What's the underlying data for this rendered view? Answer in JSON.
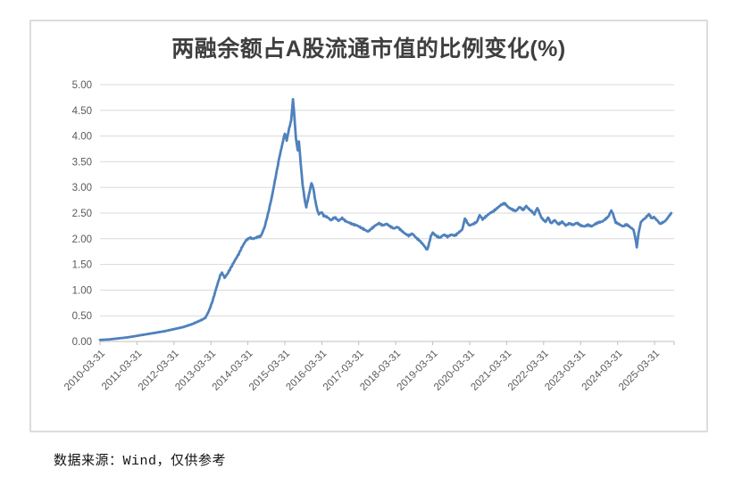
{
  "footer": {
    "source_text": "数据来源：Wind，仅供参考"
  },
  "style_colors": {
    "line": "#4F81BD",
    "gridline": "#D9D9D9",
    "axis": "#BFBFBF",
    "tick_label": "#595959",
    "title": "#3F3F3F",
    "chart_border": "#DCDCDC"
  },
  "chart_data": {
    "type": "line",
    "title": "两融余额占A股流通市值的比例变化(%)",
    "xlabel": "",
    "ylabel": "",
    "ylim": [
      0,
      5
    ],
    "ytick_step": 0.5,
    "grid": "horizontal-only",
    "legend": "none",
    "y_tick_labels": [
      "0.00",
      "0.50",
      "1.00",
      "1.50",
      "2.00",
      "2.50",
      "3.00",
      "3.50",
      "4.00",
      "4.50",
      "5.00"
    ],
    "x_tick_labels": [
      "2010-03-31",
      "2011-03-31",
      "2012-03-31",
      "2013-03-31",
      "2014-03-31",
      "2015-03-31",
      "2016-03-31",
      "2017-03-31",
      "2018-03-31",
      "2019-03-31",
      "2020-03-31",
      "2021-03-31",
      "2022-03-31",
      "2023-03-31",
      "2024-03-31",
      "2025-03-31"
    ],
    "x_axis_start_year": 2010.25,
    "x_axis_end_year": 2025.77,
    "series": [
      {
        "name": "两融余额占A股流通市值的比例(%)",
        "points": [
          [
            2010.25,
            0.03
          ],
          [
            2010.5,
            0.04
          ],
          [
            2010.75,
            0.06
          ],
          [
            2011.0,
            0.08
          ],
          [
            2011.25,
            0.11
          ],
          [
            2011.5,
            0.14
          ],
          [
            2011.75,
            0.17
          ],
          [
            2012.0,
            0.2
          ],
          [
            2012.25,
            0.24
          ],
          [
            2012.5,
            0.28
          ],
          [
            2012.75,
            0.34
          ],
          [
            2013.0,
            0.42
          ],
          [
            2013.1,
            0.46
          ],
          [
            2013.2,
            0.6
          ],
          [
            2013.3,
            0.8
          ],
          [
            2013.4,
            1.05
          ],
          [
            2013.5,
            1.28
          ],
          [
            2013.55,
            1.33
          ],
          [
            2013.62,
            1.24
          ],
          [
            2013.7,
            1.32
          ],
          [
            2013.8,
            1.45
          ],
          [
            2013.9,
            1.58
          ],
          [
            2014.0,
            1.7
          ],
          [
            2014.1,
            1.85
          ],
          [
            2014.2,
            1.97
          ],
          [
            2014.3,
            2.02
          ],
          [
            2014.4,
            2.0
          ],
          [
            2014.5,
            2.03
          ],
          [
            2014.6,
            2.05
          ],
          [
            2014.7,
            2.22
          ],
          [
            2014.8,
            2.5
          ],
          [
            2014.9,
            2.82
          ],
          [
            2015.0,
            3.2
          ],
          [
            2015.1,
            3.58
          ],
          [
            2015.2,
            3.9
          ],
          [
            2015.25,
            4.05
          ],
          [
            2015.3,
            3.92
          ],
          [
            2015.35,
            4.1
          ],
          [
            2015.42,
            4.3
          ],
          [
            2015.47,
            4.72
          ],
          [
            2015.5,
            4.45
          ],
          [
            2015.55,
            3.95
          ],
          [
            2015.6,
            3.72
          ],
          [
            2015.63,
            3.9
          ],
          [
            2015.68,
            3.45
          ],
          [
            2015.73,
            3.05
          ],
          [
            2015.8,
            2.7
          ],
          [
            2015.83,
            2.62
          ],
          [
            2015.9,
            2.85
          ],
          [
            2015.97,
            3.08
          ],
          [
            2016.02,
            2.98
          ],
          [
            2016.08,
            2.72
          ],
          [
            2016.13,
            2.55
          ],
          [
            2016.17,
            2.48
          ],
          [
            2016.25,
            2.52
          ],
          [
            2016.3,
            2.45
          ],
          [
            2016.4,
            2.42
          ],
          [
            2016.5,
            2.36
          ],
          [
            2016.6,
            2.42
          ],
          [
            2016.7,
            2.35
          ],
          [
            2016.8,
            2.4
          ],
          [
            2016.9,
            2.34
          ],
          [
            2017.0,
            2.31
          ],
          [
            2017.1,
            2.28
          ],
          [
            2017.2,
            2.26
          ],
          [
            2017.3,
            2.22
          ],
          [
            2017.4,
            2.18
          ],
          [
            2017.5,
            2.14
          ],
          [
            2017.6,
            2.2
          ],
          [
            2017.7,
            2.26
          ],
          [
            2017.8,
            2.3
          ],
          [
            2017.9,
            2.26
          ],
          [
            2018.0,
            2.29
          ],
          [
            2018.1,
            2.24
          ],
          [
            2018.2,
            2.2
          ],
          [
            2018.3,
            2.23
          ],
          [
            2018.4,
            2.16
          ],
          [
            2018.5,
            2.1
          ],
          [
            2018.6,
            2.06
          ],
          [
            2018.7,
            2.1
          ],
          [
            2018.8,
            2.02
          ],
          [
            2018.9,
            1.96
          ],
          [
            2019.0,
            1.88
          ],
          [
            2019.1,
            1.78
          ],
          [
            2019.15,
            1.9
          ],
          [
            2019.2,
            2.05
          ],
          [
            2019.25,
            2.12
          ],
          [
            2019.35,
            2.05
          ],
          [
            2019.45,
            2.02
          ],
          [
            2019.55,
            2.08
          ],
          [
            2019.65,
            2.04
          ],
          [
            2019.75,
            2.08
          ],
          [
            2019.85,
            2.06
          ],
          [
            2019.95,
            2.12
          ],
          [
            2020.05,
            2.18
          ],
          [
            2020.12,
            2.4
          ],
          [
            2020.18,
            2.32
          ],
          [
            2020.25,
            2.26
          ],
          [
            2020.35,
            2.29
          ],
          [
            2020.45,
            2.33
          ],
          [
            2020.52,
            2.46
          ],
          [
            2020.6,
            2.38
          ],
          [
            2020.7,
            2.44
          ],
          [
            2020.8,
            2.5
          ],
          [
            2020.9,
            2.54
          ],
          [
            2021.0,
            2.6
          ],
          [
            2021.1,
            2.66
          ],
          [
            2021.2,
            2.69
          ],
          [
            2021.3,
            2.61
          ],
          [
            2021.4,
            2.57
          ],
          [
            2021.5,
            2.54
          ],
          [
            2021.6,
            2.62
          ],
          [
            2021.7,
            2.56
          ],
          [
            2021.78,
            2.64
          ],
          [
            2021.85,
            2.58
          ],
          [
            2021.95,
            2.52
          ],
          [
            2022.0,
            2.48
          ],
          [
            2022.08,
            2.6
          ],
          [
            2022.13,
            2.52
          ],
          [
            2022.2,
            2.4
          ],
          [
            2022.3,
            2.33
          ],
          [
            2022.37,
            2.42
          ],
          [
            2022.45,
            2.3
          ],
          [
            2022.55,
            2.36
          ],
          [
            2022.65,
            2.28
          ],
          [
            2022.75,
            2.33
          ],
          [
            2022.85,
            2.26
          ],
          [
            2022.95,
            2.3
          ],
          [
            2023.05,
            2.27
          ],
          [
            2023.15,
            2.31
          ],
          [
            2023.25,
            2.26
          ],
          [
            2023.35,
            2.24
          ],
          [
            2023.45,
            2.27
          ],
          [
            2023.55,
            2.24
          ],
          [
            2023.65,
            2.29
          ],
          [
            2023.75,
            2.32
          ],
          [
            2023.85,
            2.34
          ],
          [
            2023.95,
            2.4
          ],
          [
            2024.02,
            2.46
          ],
          [
            2024.08,
            2.55
          ],
          [
            2024.13,
            2.48
          ],
          [
            2024.2,
            2.32
          ],
          [
            2024.3,
            2.28
          ],
          [
            2024.4,
            2.24
          ],
          [
            2024.5,
            2.28
          ],
          [
            2024.6,
            2.22
          ],
          [
            2024.68,
            2.18
          ],
          [
            2024.73,
            2.02
          ],
          [
            2024.77,
            1.84
          ],
          [
            2024.82,
            2.12
          ],
          [
            2024.88,
            2.32
          ],
          [
            2024.95,
            2.38
          ],
          [
            2025.02,
            2.42
          ],
          [
            2025.1,
            2.48
          ],
          [
            2025.17,
            2.4
          ],
          [
            2025.25,
            2.42
          ],
          [
            2025.32,
            2.36
          ],
          [
            2025.4,
            2.29
          ],
          [
            2025.48,
            2.32
          ],
          [
            2025.55,
            2.36
          ],
          [
            2025.62,
            2.42
          ],
          [
            2025.7,
            2.5
          ]
        ]
      }
    ]
  }
}
